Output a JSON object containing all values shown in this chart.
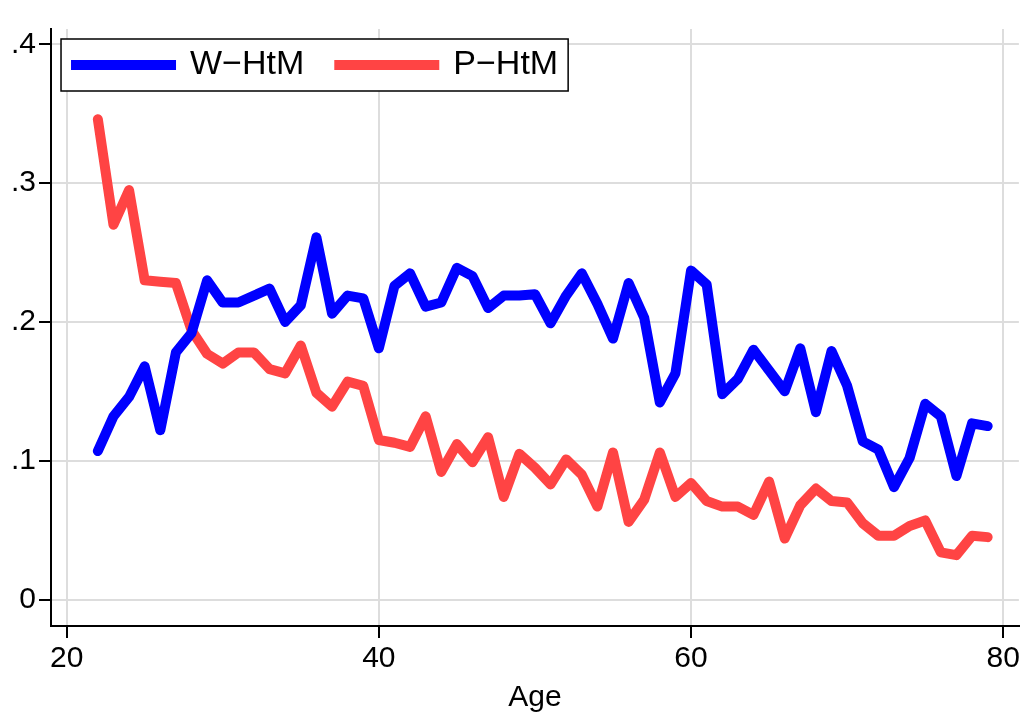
{
  "chart_data": {
    "type": "line",
    "xlabel": "Age",
    "x": [
      22,
      23,
      24,
      25,
      26,
      27,
      28,
      29,
      30,
      31,
      32,
      33,
      34,
      35,
      36,
      37,
      38,
      39,
      40,
      41,
      42,
      43,
      44,
      45,
      46,
      47,
      48,
      49,
      50,
      51,
      52,
      53,
      54,
      55,
      56,
      57,
      58,
      59,
      60,
      61,
      62,
      63,
      64,
      65,
      66,
      67,
      68,
      69,
      70,
      71,
      72,
      73,
      74,
      75,
      76,
      77,
      78,
      79
    ],
    "series": [
      {
        "name": "W−HtM",
        "color": "#0000ff",
        "values": [
          0.107,
          0.132,
          0.146,
          0.168,
          0.122,
          0.178,
          0.192,
          0.23,
          0.214,
          0.214,
          0.219,
          0.224,
          0.2,
          0.212,
          0.261,
          0.206,
          0.219,
          0.217,
          0.181,
          0.226,
          0.235,
          0.211,
          0.214,
          0.239,
          0.233,
          0.21,
          0.219,
          0.219,
          0.22,
          0.199,
          0.219,
          0.235,
          0.213,
          0.188,
          0.228,
          0.203,
          0.142,
          0.163,
          0.237,
          0.227,
          0.148,
          0.159,
          0.18,
          0.165,
          0.15,
          0.181,
          0.135,
          0.179,
          0.154,
          0.114,
          0.108,
          0.081,
          0.102,
          0.141,
          0.132,
          0.089,
          0.127,
          0.125
        ]
      },
      {
        "name": "P−HtM",
        "color": "#ff4444",
        "values": [
          0.346,
          0.27,
          0.295,
          0.23,
          0.229,
          0.228,
          0.194,
          0.177,
          0.17,
          0.178,
          0.178,
          0.166,
          0.163,
          0.183,
          0.149,
          0.139,
          0.157,
          0.154,
          0.115,
          0.113,
          0.11,
          0.132,
          0.092,
          0.112,
          0.099,
          0.117,
          0.074,
          0.105,
          0.095,
          0.083,
          0.101,
          0.09,
          0.067,
          0.106,
          0.056,
          0.072,
          0.106,
          0.074,
          0.084,
          0.071,
          0.067,
          0.067,
          0.061,
          0.085,
          0.044,
          0.068,
          0.08,
          0.071,
          0.07,
          0.055,
          0.046,
          0.046,
          0.053,
          0.057,
          0.034,
          0.032,
          0.046,
          0.045
        ]
      }
    ],
    "xlim": [
      19,
      81
    ],
    "xticks": [
      20,
      40,
      60,
      80
    ],
    "ylim": [
      -0.019,
      0.411
    ],
    "yticks": [
      {
        "value": 0,
        "label": "0"
      },
      {
        "value": 0.1,
        "label": ".1"
      },
      {
        "value": 0.2,
        "label": ".2"
      },
      {
        "value": 0.3,
        "label": ".3"
      },
      {
        "value": 0.4,
        "label": ".4"
      }
    ],
    "grid": true,
    "legend": "top left",
    "marker": "none",
    "line_style": "solid"
  }
}
